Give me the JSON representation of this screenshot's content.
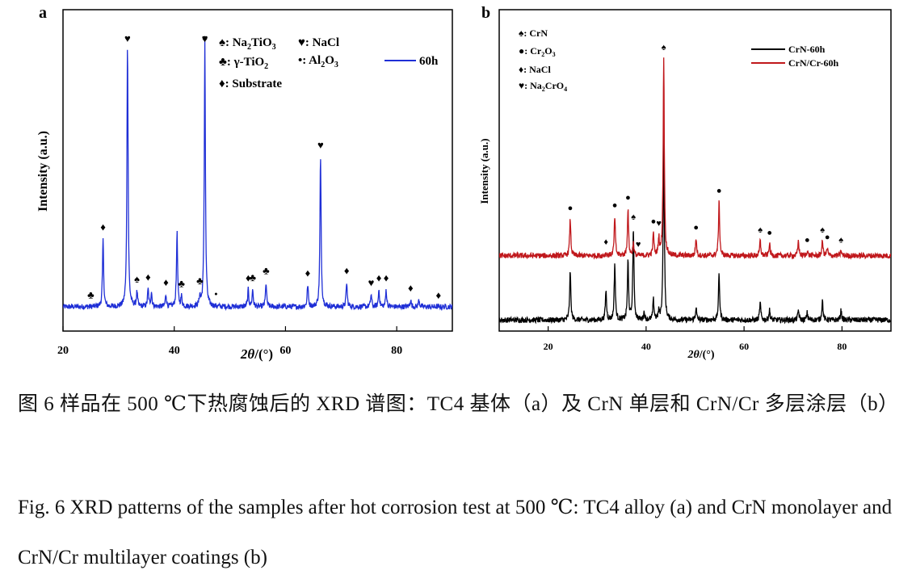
{
  "panels": [
    {
      "letter": "a",
      "xlabel_theta": "2θ",
      "xlabel_unit": "/(°)",
      "ylabel": "Intensity (a.u.)",
      "tick_labels": [
        "20",
        "40",
        "60",
        "80"
      ],
      "legend": [
        {
          "marker": "♠",
          "text": ": Na",
          "sub": "2",
          "tail": "TiO",
          "sub2": "3"
        },
        {
          "marker": "♥",
          "text": ": NaCl"
        },
        {
          "marker": "♣",
          "text": ": γ-TiO",
          "sub": "2"
        },
        {
          "marker": "•",
          "text": ": Al",
          "sub": "2",
          "tail": "O",
          "sub2": "3"
        },
        {
          "marker": "♦",
          "text": ": Substrate"
        }
      ],
      "series_legend": "60h"
    },
    {
      "letter": "b",
      "xlabel_theta": "2θ",
      "xlabel_unit": "/(°)",
      "ylabel": "Intensity (a.u.)",
      "tick_labels": [
        "20",
        "40",
        "60",
        "80"
      ],
      "legend": [
        {
          "marker": "♠",
          "text": ": CrN"
        },
        {
          "marker": "●",
          "text": ": Cr",
          "sub": "2",
          "tail": "O",
          "sub2": "3"
        },
        {
          "marker": "♦",
          "text": ": NaCl"
        },
        {
          "marker": "♥",
          "text": ": Na",
          "sub": "2",
          "tail": "CrO",
          "sub2": "4"
        }
      ],
      "series_legend": [
        "CrN-60h",
        "CrN/Cr-60h"
      ]
    }
  ],
  "caption": {
    "cn": "图 6  样品在 500 ℃下热腐蚀后的 XRD 谱图：TC4 基体（a）及 CrN 单层和 CrN/Cr 多层涂层（b）",
    "en": "Fig. 6 XRD patterns of the samples after hot corrosion test at 500 ℃: TC4 alloy (a) and CrN monolayer and CrN/Cr multilayer coatings (b)"
  },
  "chart_data": [
    {
      "type": "line",
      "panel": "a",
      "xlim": [
        20,
        90
      ],
      "x_ticks": [
        20,
        40,
        60,
        80
      ],
      "y_ticks": "none",
      "ylim": [
        0,
        100
      ],
      "series": [
        {
          "name": "60h",
          "color": "#1f2fd6",
          "baseline": 6,
          "peaks": [
            {
              "x": 27.2,
              "h": 28
            },
            {
              "x": 31.6,
              "h": 110
            },
            {
              "x": 33.3,
              "h": 6
            },
            {
              "x": 35.3,
              "h": 7
            },
            {
              "x": 35.9,
              "h": 6
            },
            {
              "x": 38.5,
              "h": 5
            },
            {
              "x": 40.5,
              "h": 31
            },
            {
              "x": 41.3,
              "h": 4
            },
            {
              "x": 44.6,
              "h": 4
            },
            {
              "x": 45.5,
              "h": 110
            },
            {
              "x": 53.3,
              "h": 7
            },
            {
              "x": 54.1,
              "h": 7
            },
            {
              "x": 56.5,
              "h": 10
            },
            {
              "x": 64.0,
              "h": 9
            },
            {
              "x": 66.3,
              "h": 62
            },
            {
              "x": 71.0,
              "h": 10
            },
            {
              "x": 75.4,
              "h": 5
            },
            {
              "x": 76.8,
              "h": 7
            },
            {
              "x": 78.1,
              "h": 7
            },
            {
              "x": 82.5,
              "h": 3
            },
            {
              "x": 84.0,
              "h": 3
            }
          ]
        }
      ],
      "annotations": [
        {
          "marker": "♥",
          "x": 31.6
        },
        {
          "marker": "♦",
          "x": 45.5
        },
        {
          "marker": "♦",
          "x": 27.2
        },
        {
          "marker": "♣",
          "x": 25.0
        },
        {
          "marker": "♠",
          "x": 25.0
        },
        {
          "marker": "♠",
          "x": 33.3
        },
        {
          "marker": "♦",
          "x": 35.3
        },
        {
          "marker": "♦",
          "x": 38.5
        },
        {
          "marker": "♣",
          "x": 41.3
        },
        {
          "marker": "♣",
          "x": 44.6
        },
        {
          "marker": "•",
          "x": 47.5
        },
        {
          "marker": "♥",
          "x": 45.5
        },
        {
          "marker": "♦",
          "x": 53.3
        },
        {
          "marker": "♣",
          "x": 54.1
        },
        {
          "marker": "♣",
          "x": 56.5
        },
        {
          "marker": "♦",
          "x": 64.0
        },
        {
          "marker": "♥",
          "x": 66.3
        },
        {
          "marker": "♦",
          "x": 71.0
        },
        {
          "marker": "♥",
          "x": 75.4
        },
        {
          "marker": "♦",
          "x": 76.8
        },
        {
          "marker": "♦",
          "x": 78.1
        },
        {
          "marker": "♦",
          "x": 82.5
        },
        {
          "marker": "♦",
          "x": 87.5
        }
      ]
    },
    {
      "type": "line",
      "panel": "b",
      "xlim": [
        10,
        90
      ],
      "x_ticks": [
        20,
        40,
        60,
        80
      ],
      "y_ticks": "none",
      "ylim": [
        0,
        100
      ],
      "series": [
        {
          "name": "CrN-60h",
          "color": "#000000",
          "baseline": 10,
          "peaks": [
            {
              "x": 24.5,
              "h": 20
            },
            {
              "x": 31.8,
              "h": 12
            },
            {
              "x": 33.6,
              "h": 23
            },
            {
              "x": 36.3,
              "h": 24
            },
            {
              "x": 37.4,
              "h": 37
            },
            {
              "x": 39.6,
              "h": 3
            },
            {
              "x": 41.5,
              "h": 8
            },
            {
              "x": 42.6,
              "h": 3
            },
            {
              "x": 43.6,
              "h": 75
            },
            {
              "x": 50.2,
              "h": 5
            },
            {
              "x": 54.9,
              "h": 19
            },
            {
              "x": 63.3,
              "h": 7
            },
            {
              "x": 65.2,
              "h": 4
            },
            {
              "x": 71.1,
              "h": 4
            },
            {
              "x": 72.9,
              "h": 3
            },
            {
              "x": 76.0,
              "h": 8
            },
            {
              "x": 79.8,
              "h": 4
            }
          ]
        },
        {
          "name": "CrN/Cr-60h",
          "color": "#c0181c",
          "baseline": 68,
          "peaks": [
            {
              "x": 24.5,
              "h": 15
            },
            {
              "x": 31.8,
              "h": 1
            },
            {
              "x": 33.6,
              "h": 16
            },
            {
              "x": 36.3,
              "h": 19
            },
            {
              "x": 37.4,
              "h": 5
            },
            {
              "x": 41.5,
              "h": 9
            },
            {
              "x": 42.6,
              "h": 7
            },
            {
              "x": 43.6,
              "h": 80
            },
            {
              "x": 50.2,
              "h": 7
            },
            {
              "x": 54.9,
              "h": 22
            },
            {
              "x": 63.3,
              "h": 6
            },
            {
              "x": 65.2,
              "h": 5
            },
            {
              "x": 71.1,
              "h": 6
            },
            {
              "x": 72.9,
              "h": 2
            },
            {
              "x": 76.0,
              "h": 6
            },
            {
              "x": 77.0,
              "h": 3
            },
            {
              "x": 79.8,
              "h": 2
            }
          ]
        }
      ],
      "annotations": [
        {
          "marker": "♠",
          "x": 43.6
        },
        {
          "marker": "●",
          "x": 24.5
        },
        {
          "marker": "●",
          "x": 33.6
        },
        {
          "marker": "●",
          "x": 36.3
        },
        {
          "marker": "♦",
          "x": 31.8
        },
        {
          "marker": "♠",
          "x": 37.4
        },
        {
          "marker": "♥",
          "x": 38.4
        },
        {
          "marker": "●",
          "x": 41.5
        },
        {
          "marker": "♥",
          "x": 42.6
        },
        {
          "marker": "●",
          "x": 50.2
        },
        {
          "marker": "●",
          "x": 54.9
        },
        {
          "marker": "♠",
          "x": 63.3
        },
        {
          "marker": "●",
          "x": 65.2
        },
        {
          "marker": "●",
          "x": 72.9
        },
        {
          "marker": "♠",
          "x": 76.0
        },
        {
          "marker": "●",
          "x": 77.0
        },
        {
          "marker": "♠",
          "x": 79.8
        }
      ]
    }
  ]
}
